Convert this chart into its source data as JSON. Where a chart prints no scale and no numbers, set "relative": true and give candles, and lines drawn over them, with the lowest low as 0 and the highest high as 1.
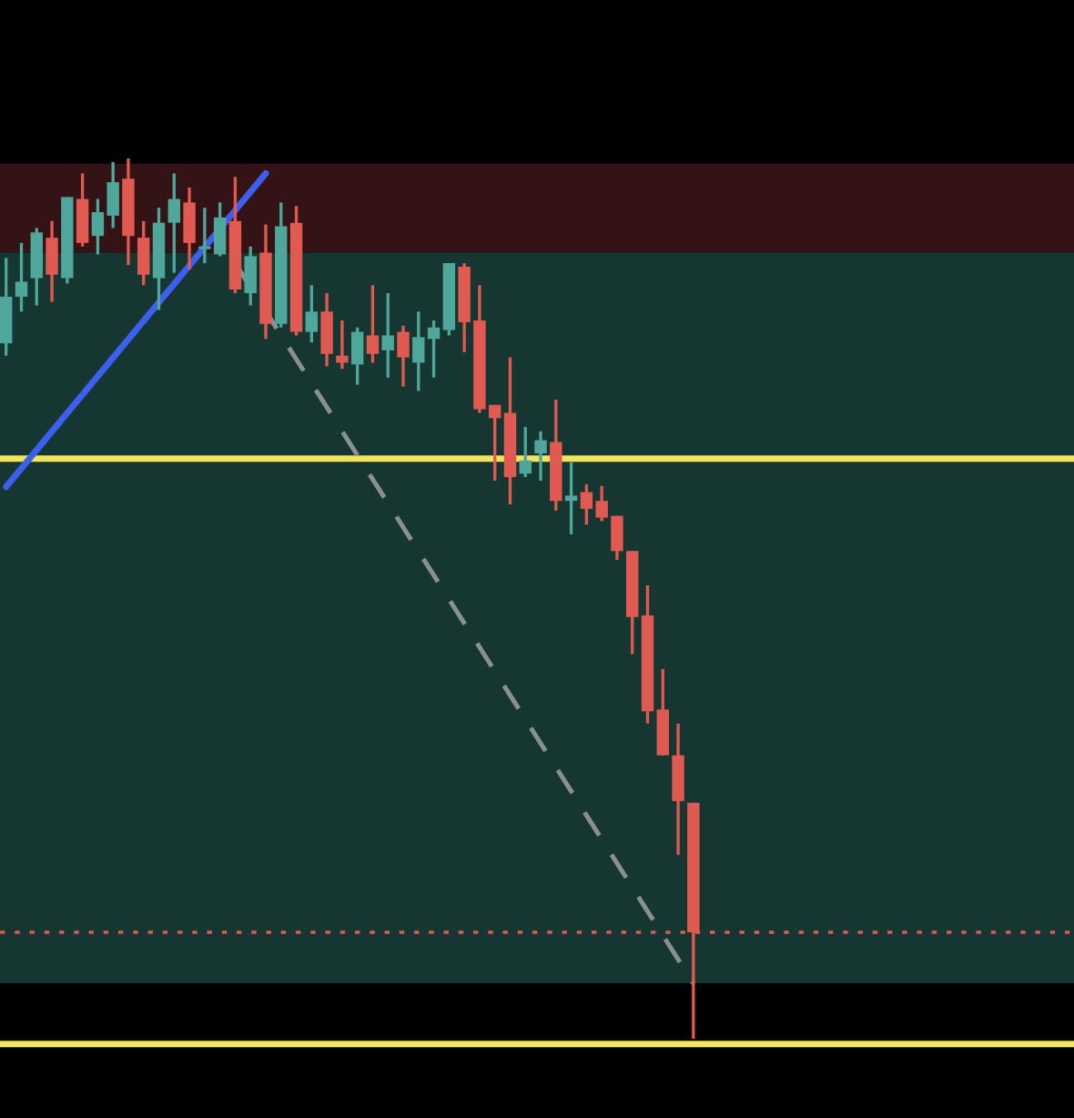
{
  "chart_data": {
    "type": "candlestick",
    "relative": true,
    "grid": false,
    "legend": false,
    "categories": [
      null,
      null,
      null,
      null,
      null,
      null,
      null,
      null,
      null,
      null,
      null,
      null,
      null,
      null,
      null,
      null,
      null,
      null,
      null,
      null,
      null,
      null,
      null,
      null,
      null,
      null,
      null,
      null,
      null,
      null,
      null,
      null,
      null,
      null,
      null,
      null,
      null,
      null,
      null,
      null,
      null,
      null,
      null,
      null,
      null,
      null
    ],
    "ohlc": [
      [
        0.79,
        0.887,
        0.776,
        0.843
      ],
      [
        0.843,
        0.904,
        0.826,
        0.86
      ],
      [
        0.864,
        0.921,
        0.833,
        0.916
      ],
      [
        0.91,
        0.929,
        0.837,
        0.868
      ],
      [
        0.864,
        0.956,
        0.858,
        0.956
      ],
      [
        0.954,
        0.983,
        0.9,
        0.904
      ],
      [
        0.912,
        0.954,
        0.891,
        0.939
      ],
      [
        0.935,
        0.996,
        0.921,
        0.973
      ],
      [
        0.977,
        1.0,
        0.879,
        0.912
      ],
      [
        0.91,
        0.929,
        0.856,
        0.868
      ],
      [
        0.864,
        0.944,
        0.828,
        0.927
      ],
      [
        0.927,
        0.983,
        0.87,
        0.954
      ],
      [
        0.95,
        0.967,
        0.874,
        0.904
      ],
      [
        0.897,
        0.944,
        0.881,
        0.9
      ],
      [
        0.891,
        0.95,
        0.889,
        0.933
      ],
      [
        0.929,
        0.979,
        0.847,
        0.851
      ],
      [
        0.847,
        0.9,
        0.833,
        0.889
      ],
      [
        0.893,
        0.925,
        0.795,
        0.812
      ],
      [
        0.812,
        0.95,
        0.808,
        0.923
      ],
      [
        0.927,
        0.946,
        0.799,
        0.803
      ],
      [
        0.803,
        0.856,
        0.791,
        0.826
      ],
      [
        0.826,
        0.847,
        0.764,
        0.778
      ],
      [
        0.776,
        0.816,
        0.761,
        0.768
      ],
      [
        0.766,
        0.808,
        0.743,
        0.803
      ],
      [
        0.799,
        0.856,
        0.768,
        0.778
      ],
      [
        0.782,
        0.847,
        0.751,
        0.799
      ],
      [
        0.803,
        0.81,
        0.741,
        0.774
      ],
      [
        0.768,
        0.826,
        0.736,
        0.797
      ],
      [
        0.795,
        0.816,
        0.751,
        0.808
      ],
      [
        0.805,
        0.881,
        0.799,
        0.881
      ],
      [
        0.877,
        0.881,
        0.78,
        0.814
      ],
      [
        0.816,
        0.856,
        0.711,
        0.715
      ],
      [
        0.72,
        0.72,
        0.634,
        0.705
      ],
      [
        0.711,
        0.774,
        0.607,
        0.638
      ],
      [
        0.642,
        0.695,
        0.638,
        0.657
      ],
      [
        0.665,
        0.69,
        0.634,
        0.68
      ],
      [
        0.678,
        0.726,
        0.6,
        0.611
      ],
      [
        0.611,
        0.655,
        0.573,
        0.617
      ],
      [
        0.621,
        0.63,
        0.584,
        0.602
      ],
      [
        0.611,
        0.628,
        0.588,
        0.592
      ],
      [
        0.594,
        0.594,
        0.544,
        0.554
      ],
      [
        0.554,
        0.554,
        0.437,
        0.479
      ],
      [
        0.481,
        0.515,
        0.358,
        0.372
      ],
      [
        0.374,
        0.42,
        0.322,
        0.322
      ],
      [
        0.322,
        0.358,
        0.209,
        0.27
      ],
      [
        0.268,
        0.268,
        0.0,
        0.121
      ]
    ],
    "colors": [
      "#4fa69a",
      "#4fa69a",
      "#4fa69a",
      "#e05a52",
      "#4fa69a",
      "#e05a52",
      "#4fa69a",
      "#4fa69a",
      "#e05a52",
      "#e05a52",
      "#4fa69a",
      "#4fa69a",
      "#e05a52",
      "#4fa69a",
      "#4fa69a",
      "#e05a52",
      "#4fa69a",
      "#e05a52",
      "#4fa69a",
      "#e05a52",
      "#4fa69a",
      "#e05a52",
      "#e05a52",
      "#4fa69a",
      "#e05a52",
      "#4fa69a",
      "#e05a52",
      "#4fa69a",
      "#4fa69a",
      "#4fa69a",
      "#e05a52",
      "#e05a52",
      "#e05a52",
      "#e05a52",
      "#4fa69a",
      "#4fa69a",
      "#e05a52",
      "#4fa69a",
      "#e05a52",
      "#e05a52",
      "#e05a52",
      "#e05a52",
      "#e05a52",
      "#e05a52",
      "#e05a52",
      "#e05a52"
    ],
    "series": [
      {
        "type": "line",
        "values": [
          0.627,
          null,
          null,
          null,
          null,
          null,
          null,
          null,
          null,
          null,
          null,
          null,
          null,
          null,
          null,
          null,
          null,
          0.983,
          null,
          null,
          null,
          null,
          null,
          null,
          null,
          null,
          null,
          null,
          null,
          null,
          null,
          null,
          null,
          null,
          null,
          null,
          null,
          null,
          null,
          null,
          null,
          null,
          null,
          null,
          null,
          null
        ],
        "color": "#3d5ff0",
        "line_style": "solid"
      },
      {
        "type": "line",
        "values": [
          null,
          null,
          null,
          null,
          null,
          null,
          null,
          null,
          null,
          null,
          null,
          null,
          null,
          null,
          null,
          0.881,
          null,
          null,
          null,
          null,
          null,
          null,
          null,
          null,
          null,
          null,
          null,
          null,
          null,
          null,
          null,
          null,
          null,
          null,
          null,
          null,
          null,
          null,
          null,
          null,
          null,
          null,
          null,
          null,
          null,
          0.063
        ],
        "color": "#8a8f94",
        "line_style": "dashed"
      }
    ],
    "ref_lines": [
      {
        "axis": "y",
        "value": 0.659,
        "color": "#f2e55c",
        "line_style": "solid"
      },
      {
        "axis": "y",
        "value": -0.006,
        "color": "#f2e55c",
        "line_style": "solid"
      },
      {
        "axis": "y",
        "value": 0.121,
        "color": "#e05a52",
        "line_style": "dotted"
      }
    ],
    "bands": [
      {
        "axis": "y",
        "from": 0.893,
        "to": 0.994,
        "color": "#331315"
      },
      {
        "axis": "y",
        "from": 0.063,
        "to": 0.893,
        "color": "#163631"
      }
    ]
  }
}
